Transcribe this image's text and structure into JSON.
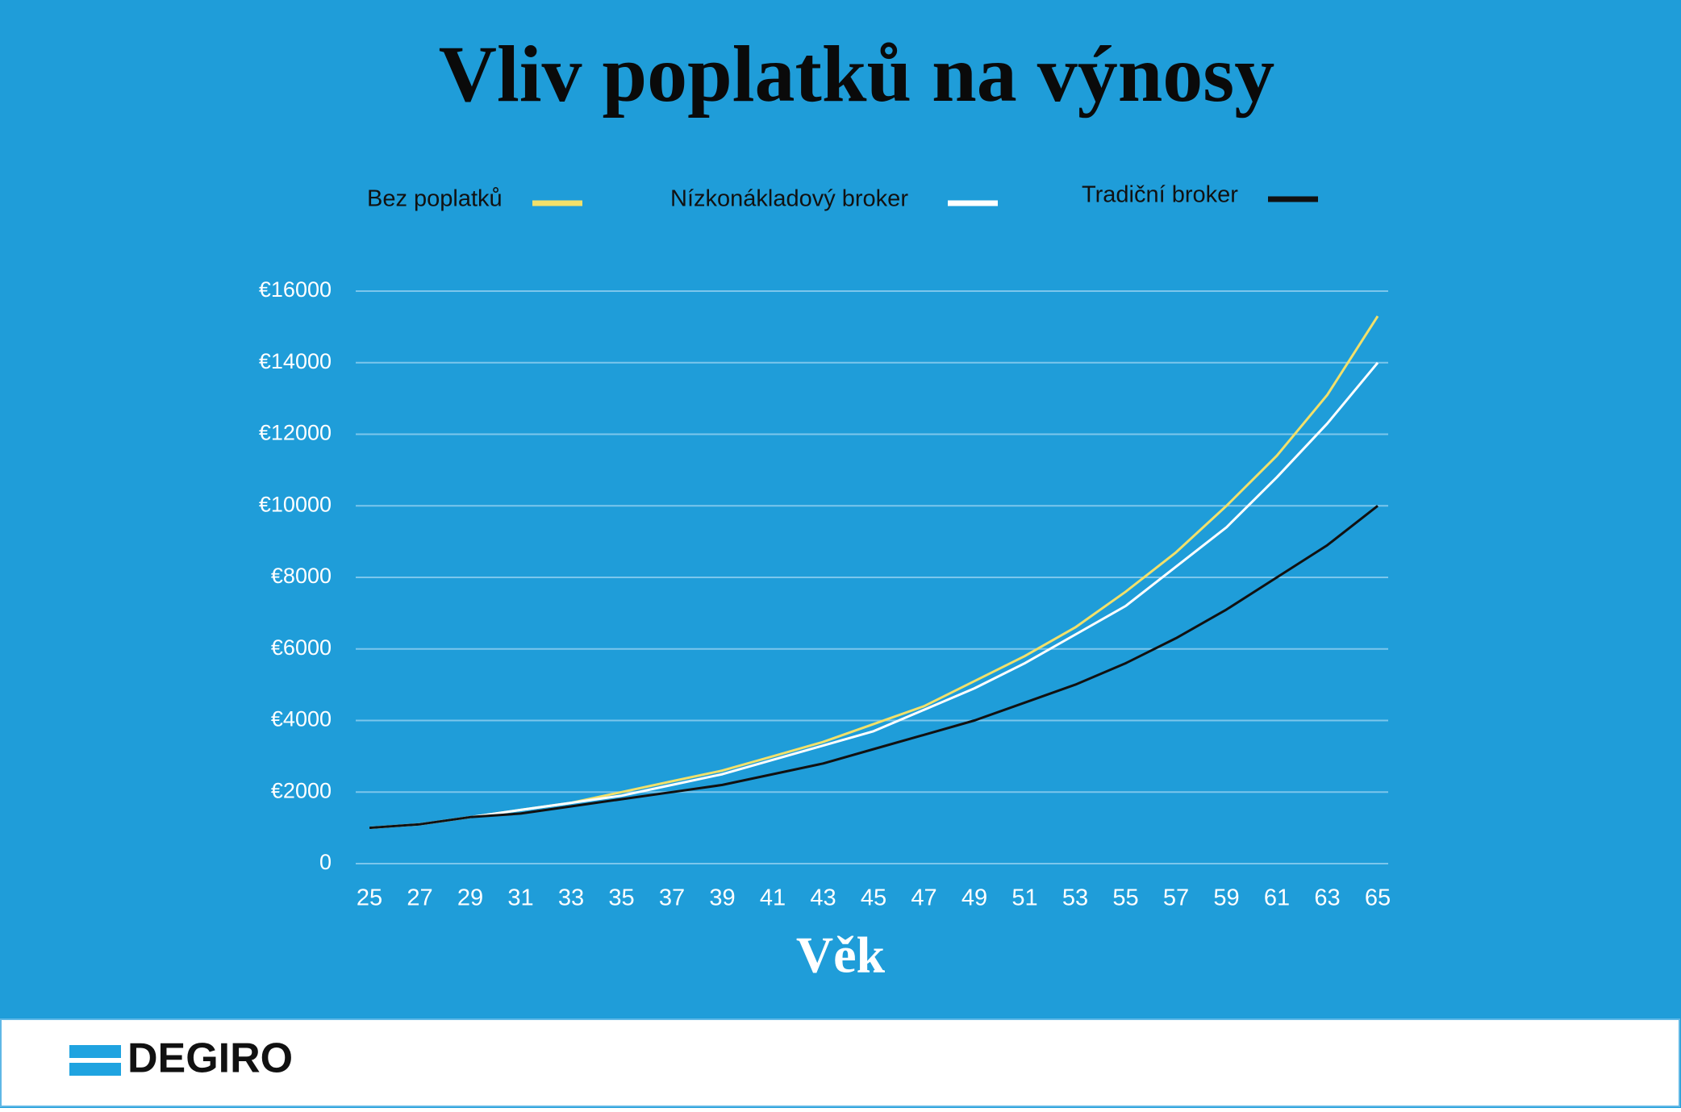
{
  "chart_data": {
    "type": "line",
    "title": "Vliv poplatků na výnosy",
    "x_label": "Věk",
    "x": [
      25,
      27,
      29,
      31,
      33,
      35,
      37,
      39,
      41,
      43,
      45,
      47,
      49,
      51,
      53,
      55,
      57,
      59,
      61,
      63,
      65
    ],
    "xlim": [
      25,
      65
    ],
    "xticks": [
      25,
      27,
      29,
      31,
      33,
      35,
      37,
      39,
      41,
      43,
      45,
      47,
      49,
      51,
      53,
      55,
      57,
      59,
      61,
      63,
      65
    ],
    "ylim": [
      0,
      16000
    ],
    "yticks": [
      0,
      {
        "value": 2000,
        "label": "€2000"
      },
      {
        "value": 4000,
        "label": "€4000"
      },
      {
        "value": 6000,
        "label": "€6000"
      },
      {
        "value": 8000,
        "label": "€8000"
      },
      {
        "value": 10000,
        "label": "€10000"
      },
      {
        "value": 12000,
        "label": "€12000"
      },
      {
        "value": 14000,
        "label": "€14000"
      },
      {
        "value": 16000,
        "label": "€16000"
      }
    ],
    "grid": true,
    "series": [
      {
        "name": "Bez poplatků",
        "color": "#f2e06a",
        "values": [
          1000,
          1100,
          1300,
          1500,
          1700,
          2000,
          2300,
          2600,
          3000,
          3400,
          3900,
          4400,
          5100,
          5800,
          6600,
          7600,
          8700,
          10000,
          11400,
          13100,
          15300
        ]
      },
      {
        "name": "Nízkonákladový broker",
        "color": "#ffffff",
        "values": [
          1000,
          1100,
          1300,
          1500,
          1700,
          1900,
          2200,
          2500,
          2900,
          3300,
          3700,
          4300,
          4900,
          5600,
          6400,
          7200,
          8300,
          9400,
          10800,
          12300,
          14000
        ]
      },
      {
        "name": "Tradiční broker",
        "color": "#111111",
        "values": [
          1000,
          1100,
          1300,
          1400,
          1600,
          1800,
          2000,
          2200,
          2500,
          2800,
          3200,
          3600,
          4000,
          4500,
          5000,
          5600,
          6300,
          7100,
          8000,
          8900,
          10000
        ]
      }
    ]
  },
  "footer": {
    "brand": "DEGIRO"
  }
}
